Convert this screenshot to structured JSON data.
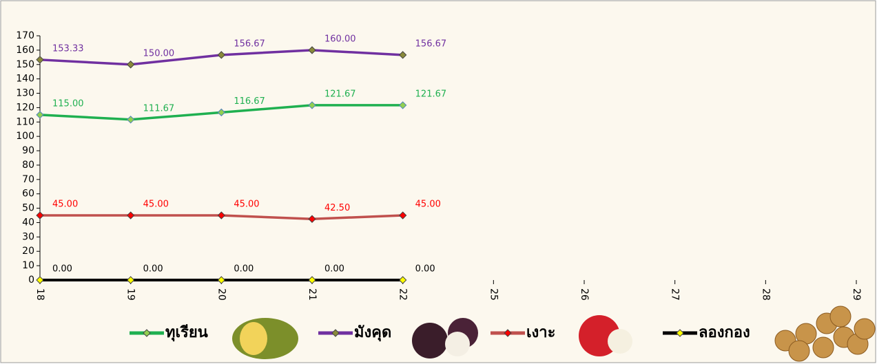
{
  "chart_data": {
    "type": "line",
    "categories": [
      "18",
      "19",
      "20",
      "21",
      "22",
      "25",
      "26",
      "27",
      "28",
      "29"
    ],
    "series": [
      {
        "name": "ทุเรียน",
        "color": "#1fb050",
        "marker_color": "#92d050",
        "values": [
          115,
          111.67,
          116.67,
          121.67,
          121.67,
          null,
          null,
          null,
          null,
          null
        ],
        "value_labels": [
          "115.00",
          "111.67",
          "116.67",
          "121.67",
          "121.67",
          null,
          null,
          null,
          null,
          null
        ]
      },
      {
        "name": "มังคุด",
        "color": "#7030a0",
        "marker_color": "#8a8a3a",
        "values": [
          153.33,
          150,
          156.67,
          160,
          156.67,
          null,
          null,
          null,
          null,
          null
        ],
        "value_labels": [
          "153.33",
          "150.00",
          "156.67",
          "160.00",
          "156.67",
          null,
          null,
          null,
          null,
          null
        ]
      },
      {
        "name": "เงาะ",
        "color": "#c0504d",
        "marker_color": "#ff0000",
        "label_color": "#ff0000",
        "values": [
          45,
          45,
          45,
          42.5,
          45,
          null,
          null,
          null,
          null,
          null
        ],
        "value_labels": [
          "45.00",
          "45.00",
          "45.00",
          "42.50",
          "45.00",
          null,
          null,
          null,
          null,
          null
        ]
      },
      {
        "name": "ลองกอง",
        "color": "#000000",
        "marker_color": "#ffff00",
        "values": [
          0,
          0,
          0,
          0,
          0,
          null,
          null,
          null,
          null,
          null
        ],
        "value_labels": [
          "0.00",
          "0.00",
          "0.00",
          "0.00",
          "0.00",
          null,
          null,
          null,
          null,
          null
        ]
      }
    ],
    "ylim": [
      0,
      170
    ],
    "yticks": [
      0,
      10,
      20,
      30,
      40,
      50,
      60,
      70,
      80,
      90,
      100,
      110,
      120,
      130,
      140,
      150,
      160,
      170
    ],
    "legend": "bottom"
  }
}
